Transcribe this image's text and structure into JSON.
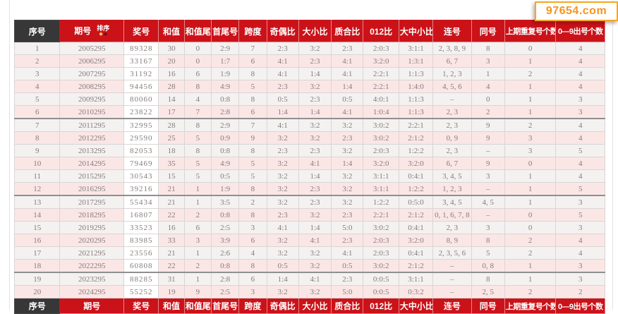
{
  "watermark": {
    "text": "97654.com",
    "accent_color": "#f7941d"
  },
  "colors": {
    "header_red": "#cb1219",
    "header_dark": "#373737",
    "row_light": "#f4f1f1",
    "row_pink": "#fbe6e6",
    "prize_col_bg": "#ffffff",
    "cell_text": "#857c7c"
  },
  "table": {
    "sort": {
      "label": "排序",
      "asc_icon": "◆",
      "desc_icon": "◆"
    },
    "columns": [
      {
        "id": "xuhao",
        "label": "序号"
      },
      {
        "id": "qihao",
        "label": "期号"
      },
      {
        "id": "jianghao",
        "label": "奖号"
      },
      {
        "id": "hezhi",
        "label": "和值"
      },
      {
        "id": "hezhiwei",
        "label": "和值尾"
      },
      {
        "id": "shouweihao",
        "label": "首尾号"
      },
      {
        "id": "kuadu",
        "label": "跨度"
      },
      {
        "id": "jioubi",
        "label": "奇偶比"
      },
      {
        "id": "daxiaobi",
        "label": "大小比"
      },
      {
        "id": "zhihebi",
        "label": "质合比"
      },
      {
        "id": "zbi012",
        "label": "012比"
      },
      {
        "id": "dazhongxiao",
        "label": "大中小比"
      },
      {
        "id": "lianhao",
        "label": "连号"
      },
      {
        "id": "tonghao",
        "label": "同号"
      },
      {
        "id": "chongfu",
        "label": "上期重复号个数"
      },
      {
        "id": "chuhao",
        "label": "0—9出号个数"
      }
    ],
    "separator_after_rows": [
      6,
      12,
      18
    ],
    "rows": [
      [
        "1",
        "2005295",
        "89328",
        "30",
        "0",
        "2:9",
        "7",
        "2:3",
        "3:2",
        "2:3",
        "2:0:3",
        "3:1:1",
        "2, 3, 8, 9",
        "8",
        "0",
        "4"
      ],
      [
        "2",
        "2006295",
        "33167",
        "20",
        "0",
        "1:7",
        "6",
        "4:1",
        "2:3",
        "4:1",
        "3:2:0",
        "1:3:1",
        "6, 7",
        "3",
        "1",
        "4"
      ],
      [
        "3",
        "2007295",
        "31192",
        "16",
        "6",
        "1:9",
        "8",
        "4:1",
        "1:4",
        "4:1",
        "2:2:1",
        "1:1:3",
        "1, 2, 3",
        "1",
        "2",
        "4"
      ],
      [
        "4",
        "2008295",
        "94456",
        "28",
        "8",
        "4:9",
        "5",
        "2:3",
        "3:2",
        "1:4",
        "2:2:1",
        "1:4:0",
        "4, 5, 6",
        "4",
        "1",
        "4"
      ],
      [
        "5",
        "2009295",
        "80060",
        "14",
        "4",
        "0:8",
        "8",
        "0:5",
        "2:3",
        "0:5",
        "4:0:1",
        "1:1:3",
        "–",
        "0",
        "1",
        "3"
      ],
      [
        "6",
        "2010295",
        "23822",
        "17",
        "7",
        "2:8",
        "6",
        "1:4",
        "1:4",
        "4:1",
        "1:0:4",
        "1:1:3",
        "2, 3",
        "2",
        "1",
        "3"
      ],
      [
        "7",
        "2011295",
        "32995",
        "28",
        "8",
        "2:9",
        "7",
        "4:1",
        "3:2",
        "3:2",
        "3:0:2",
        "2:2:1",
        "2, 3",
        "9",
        "2",
        "4"
      ],
      [
        "8",
        "2012295",
        "29590",
        "25",
        "5",
        "0:9",
        "9",
        "3:2",
        "3:2",
        "2:3",
        "3:0:2",
        "2:1:2",
        "0, 9",
        "9",
        "3",
        "4"
      ],
      [
        "9",
        "2013295",
        "82053",
        "18",
        "8",
        "0:8",
        "8",
        "2:3",
        "2:3",
        "3:2",
        "2:0:3",
        "1:2:2",
        "2, 3",
        "–",
        "3",
        "5"
      ],
      [
        "10",
        "2014295",
        "79469",
        "35",
        "5",
        "4:9",
        "5",
        "3:2",
        "4:1",
        "1:4",
        "3:2:0",
        "3:2:0",
        "6, 7",
        "9",
        "0",
        "4"
      ],
      [
        "11",
        "2015295",
        "30543",
        "15",
        "5",
        "0:5",
        "5",
        "3:2",
        "1:4",
        "3:2",
        "3:1:1",
        "0:4:1",
        "3, 4, 5",
        "3",
        "1",
        "4"
      ],
      [
        "12",
        "2016295",
        "39216",
        "21",
        "1",
        "1:9",
        "8",
        "3:2",
        "2:3",
        "3:2",
        "3:1:1",
        "1:2:2",
        "1, 2, 3",
        "–",
        "1",
        "5"
      ],
      [
        "13",
        "2017295",
        "55434",
        "21",
        "1",
        "3:5",
        "2",
        "3:2",
        "2:3",
        "3:2",
        "1:2:2",
        "0:5:0",
        "3, 4, 5",
        "4, 5",
        "1",
        "3"
      ],
      [
        "14",
        "2018295",
        "16807",
        "22",
        "2",
        "0:8",
        "8",
        "2:3",
        "3:2",
        "2:3",
        "2:2:1",
        "2:1:2",
        "0, 1, 6, 7, 8",
        "–",
        "0",
        "5"
      ],
      [
        "15",
        "2019295",
        "33523",
        "16",
        "6",
        "2:5",
        "3",
        "4:1",
        "1:4",
        "5:0",
        "3:0:2",
        "0:4:1",
        "2, 3",
        "3",
        "0",
        "3"
      ],
      [
        "16",
        "2020295",
        "83985",
        "33",
        "3",
        "3:9",
        "6",
        "3:2",
        "4:1",
        "2:3",
        "2:0:3",
        "3:2:0",
        "8, 9",
        "8",
        "2",
        "4"
      ],
      [
        "17",
        "2021295",
        "23556",
        "21",
        "1",
        "2:6",
        "4",
        "3:2",
        "3:2",
        "4:1",
        "2:0:3",
        "0:4:1",
        "2, 3, 5, 6",
        "5",
        "2",
        "4"
      ],
      [
        "18",
        "2022295",
        "60808",
        "22",
        "2",
        "0:8",
        "8",
        "0:5",
        "3:2",
        "0:5",
        "3:0:2",
        "2:1:2",
        "–",
        "0, 8",
        "1",
        "3"
      ],
      [
        "19",
        "2023295",
        "88285",
        "31",
        "1",
        "2:8",
        "6",
        "1:4",
        "4:1",
        "2:3",
        "0:0:5",
        "3:1:1",
        "–",
        "8",
        "1",
        "3"
      ],
      [
        "20",
        "2024295",
        "55252",
        "19",
        "9",
        "2:5",
        "3",
        "3:2",
        "3:2",
        "5:0",
        "0:0:5",
        "0:3:2",
        "–",
        "2, 5",
        "2",
        "2"
      ]
    ]
  }
}
